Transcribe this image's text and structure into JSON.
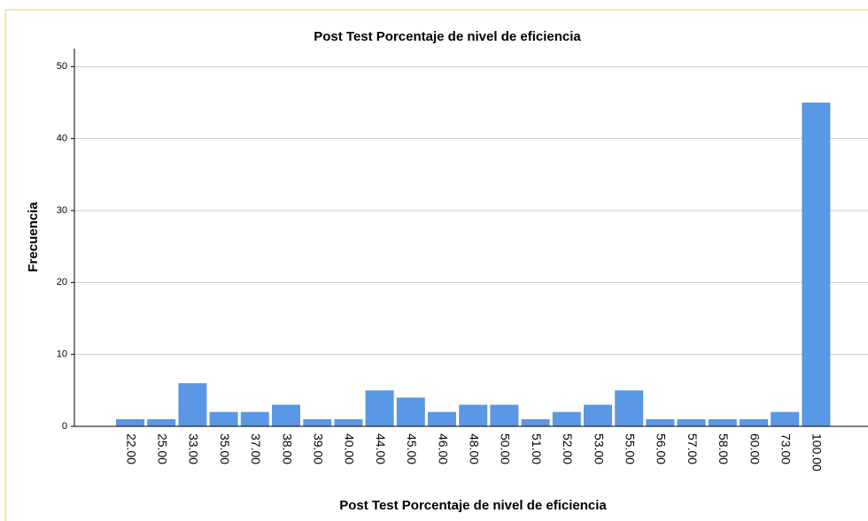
{
  "chart_data": {
    "type": "bar",
    "title": "Post Test Porcentaje de nivel de eficiencia",
    "x_label": "Post Test Porcentaje de nivel de eficiencia",
    "y_label": "Frecuencia",
    "categories": [
      "22.00",
      "25.00",
      "33.00",
      "35.00",
      "37.00",
      "38.00",
      "39.00",
      "40.00",
      "44.00",
      "45.00",
      "46.00",
      "48.00",
      "50.00",
      "51.00",
      "52.00",
      "53.00",
      "55.00",
      "56.00",
      "57.00",
      "58.00",
      "60.00",
      "73.00",
      "100.00"
    ],
    "values": [
      1,
      1,
      6,
      2,
      2,
      3,
      1,
      1,
      5,
      4,
      2,
      3,
      3,
      1,
      2,
      3,
      5,
      1,
      1,
      1,
      1,
      2,
      45
    ],
    "color": "#5a97e4",
    "ylim": [
      0,
      52.5
    ],
    "yticks": [
      0,
      10,
      20,
      30,
      40,
      50
    ],
    "grid": true
  }
}
